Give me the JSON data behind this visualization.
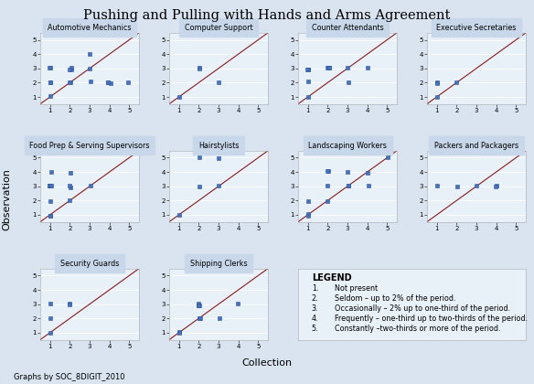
{
  "title": "Pushing and Pulling with Hands and Arms Agreement",
  "xlabel": "Collection",
  "ylabel": "Observation",
  "footer": "Graphs by SOC_8DIGIT_2010",
  "bg_color": "#d9e4f0",
  "panel_bg": "#e8f0f8",
  "line_color": "#8b1a1a",
  "marker_color": "#4472c4",
  "marker_edge": "#2f5597",
  "subplots": [
    {
      "title": "Automotive Mechanics",
      "x": [
        1,
        1,
        1,
        1,
        1,
        2,
        2,
        2,
        2,
        2,
        3,
        3,
        3,
        4,
        4,
        4,
        5
      ],
      "y": [
        1,
        2,
        2,
        3,
        3,
        2,
        2,
        3,
        3,
        3,
        2,
        3,
        4,
        2,
        2,
        2,
        2
      ]
    },
    {
      "title": "Computer Support",
      "x": [
        1,
        2,
        2,
        3
      ],
      "y": [
        1,
        3,
        3,
        2
      ]
    },
    {
      "title": "Counter Attendants",
      "x": [
        1,
        1,
        1,
        1,
        1,
        2,
        2,
        2,
        2,
        3,
        3,
        4
      ],
      "y": [
        1,
        2,
        3,
        3,
        3,
        3,
        3,
        3,
        3,
        3,
        2,
        3
      ]
    },
    {
      "title": "Executive Secretaries",
      "x": [
        1,
        1,
        1,
        2
      ],
      "y": [
        1,
        2,
        2,
        2
      ]
    },
    {
      "title": "Food Prep & Serving Supervisors",
      "x": [
        1,
        1,
        1,
        1,
        1,
        1,
        1,
        1,
        1,
        2,
        2,
        2,
        2,
        3
      ],
      "y": [
        1,
        1,
        2,
        3,
        3,
        3,
        3,
        3,
        4,
        2,
        3,
        3,
        4,
        3
      ]
    },
    {
      "title": "Hairstylists",
      "x": [
        1,
        2,
        2,
        3,
        3
      ],
      "y": [
        1,
        3,
        5,
        3,
        5
      ]
    },
    {
      "title": "Landscaping Workers",
      "x": [
        1,
        1,
        1,
        2,
        2,
        2,
        2,
        3,
        3,
        3,
        4,
        4,
        5
      ],
      "y": [
        1,
        1,
        2,
        2,
        3,
        4,
        4,
        3,
        3,
        4,
        3,
        4,
        5
      ]
    },
    {
      "title": "Packers and Packagers",
      "x": [
        1,
        2,
        3,
        4,
        4
      ],
      "y": [
        3,
        3,
        3,
        3,
        3
      ]
    },
    {
      "title": "Security Guards",
      "x": [
        1,
        1,
        1,
        2,
        2
      ],
      "y": [
        1,
        2,
        3,
        3,
        3
      ]
    },
    {
      "title": "Shipping Clerks",
      "x": [
        1,
        1,
        2,
        2,
        2,
        2,
        2,
        2,
        3,
        4
      ],
      "y": [
        1,
        1,
        2,
        3,
        3,
        3,
        3,
        2,
        2,
        3
      ]
    }
  ],
  "legend_title": "LEGEND",
  "legend_items": [
    "Not present",
    "Seldom – up to 2% of the period.",
    "Occasionally – 2% up to one-third of the period.",
    "Frequently – one-third up to two-thirds of the period.",
    "Constantly –two-thirds or more of the period."
  ]
}
